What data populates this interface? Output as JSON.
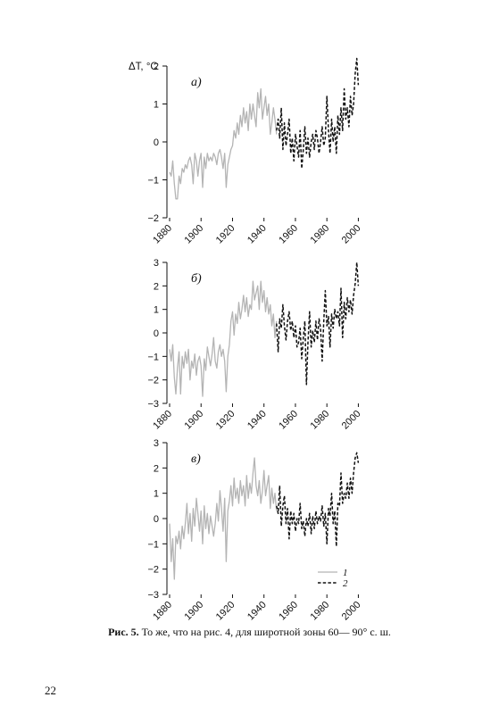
{
  "ylabel": "ΔT, °C",
  "caption": {
    "figure_number": "Рис. 5.",
    "text": "То же, что на рис. 4, для широтной зоны 60— 90° с. ш."
  },
  "page_number": "22",
  "legend": {
    "series1": "1",
    "series2": "2"
  },
  "chart_data": [
    {
      "type": "line",
      "panel_label": "а)",
      "xlim": [
        1880,
        2006
      ],
      "ylim": [
        -2,
        2
      ],
      "xticks": [
        "1880",
        "1900",
        "1920",
        "1940",
        "1960",
        "1980",
        "2000"
      ],
      "yticks": [
        "−2",
        "−1",
        "0",
        "1",
        "2"
      ],
      "series": [
        {
          "name": "1",
          "x_start": 1880,
          "values": [
            -0.8,
            -0.9,
            -0.5,
            -1.1,
            -1.5,
            -1.5,
            -0.9,
            -1.1,
            -0.7,
            -0.8,
            -0.6,
            -0.7,
            -0.5,
            -0.4,
            -0.6,
            -1.1,
            -0.3,
            -0.5,
            -0.9,
            -0.5,
            -0.3,
            -1.2,
            -0.4,
            -0.7,
            -0.3,
            -0.5,
            -0.4,
            -0.5,
            -0.3,
            -0.4,
            -0.6,
            -0.3,
            -0.2,
            -0.4,
            -0.7,
            -0.3,
            -1.2,
            -0.6,
            -0.4,
            -0.2,
            -0.1,
            0.3,
            0.1,
            0.5,
            0.2,
            0.7,
            0.4,
            0.9,
            0.5,
            0.8,
            0.3,
            1.0,
            0.6,
            1.0,
            0.7,
            0.4,
            1.3,
            0.9,
            1.4,
            0.6,
            0.9,
            1.2,
            0.7,
            1.0,
            0.2,
            0.5,
            0.9,
            0.6,
            0.2
          ]
        },
        {
          "name": "2",
          "x_start": 1948,
          "values": [
            0.3,
            0.6,
            0.1,
            0.9,
            -0.2,
            0.5,
            -0.1,
            0.2,
            0.6,
            -0.3,
            0.1,
            -0.5,
            0.2,
            -0.1,
            -0.4,
            0.3,
            -0.7,
            -0.2,
            0.4,
            -0.3,
            0.1,
            -0.4,
            0.0,
            0.2,
            -0.2,
            0.3,
            0.1,
            -0.3,
            0.0,
            0.4,
            -0.1,
            0.1,
            1.2,
            0.3,
            -0.3,
            0.6,
            0.0,
            0.4,
            -0.3,
            0.7,
            0.2,
            0.9,
            0.3,
            1.4,
            0.6,
            0.9,
            0.4,
            1.2,
            0.7,
            1.0,
            1.8,
            2.2,
            1.5
          ]
        }
      ]
    },
    {
      "type": "line",
      "panel_label": "б)",
      "xlim": [
        1880,
        2006
      ],
      "ylim": [
        -3,
        3
      ],
      "xticks": [
        "1880",
        "1900",
        "1920",
        "1940",
        "1960",
        "1980",
        "2000"
      ],
      "yticks": [
        "−3",
        "−2",
        "−1",
        "0",
        "1",
        "2",
        "3"
      ],
      "series": [
        {
          "name": "1",
          "x_start": 1880,
          "values": [
            -0.7,
            -1.2,
            -0.5,
            -1.9,
            -2.6,
            -1.5,
            -0.8,
            -2.6,
            -1.0,
            -1.5,
            -0.8,
            -1.3,
            -0.7,
            -2.0,
            -1.2,
            -1.5,
            -0.9,
            -1.8,
            -1.2,
            -1.0,
            -1.4,
            -2.7,
            -1.1,
            -1.6,
            -0.6,
            -1.0,
            -1.4,
            -0.9,
            -0.2,
            -1.2,
            -1.5,
            -0.8,
            -0.5,
            -1.0,
            -0.7,
            -1.2,
            -2.5,
            -1.0,
            -0.5,
            0.5,
            0.9,
            -0.1,
            0.8,
            0.4,
            1.3,
            0.6,
            1.0,
            1.6,
            0.9,
            1.5,
            0.7,
            1.2,
            1.0,
            2.2,
            1.4,
            1.7,
            2.0,
            1.0,
            2.2,
            1.3,
            1.8,
            0.9,
            1.5,
            0.8,
            1.2,
            0.3,
            0.8,
            -0.2,
            0.5
          ]
        },
        {
          "name": "2",
          "x_start": 1948,
          "values": [
            0.4,
            -0.8,
            0.6,
            0.2,
            1.2,
            0.3,
            -0.3,
            0.5,
            0.9,
            0.1,
            0.5,
            -0.2,
            0.3,
            -0.6,
            -0.4,
            0.2,
            -1.1,
            -0.2,
            0.5,
            -2.2,
            -0.4,
            0.9,
            -0.6,
            0.1,
            -0.4,
            0.5,
            -0.3,
            0.6,
            0.2,
            -1.2,
            0.5,
            1.8,
            0.3,
            0.7,
            -0.6,
            0.8,
            0.2,
            1.0,
            0.6,
            0.9,
            0.3,
            1.9,
            -0.2,
            1.3,
            0.6,
            1.5,
            0.9,
            1.4,
            0.8,
            1.6,
            2.1,
            3.0,
            2.0
          ]
        }
      ]
    },
    {
      "type": "line",
      "panel_label": "в)",
      "xlim": [
        1880,
        2006
      ],
      "ylim": [
        -3,
        3
      ],
      "xticks": [
        "1880",
        "1900",
        "1920",
        "1940",
        "1960",
        "1980",
        "2000"
      ],
      "yticks": [
        "−3",
        "−2",
        "−1",
        "0",
        "1",
        "2",
        "3"
      ],
      "series": [
        {
          "name": "1",
          "x_start": 1880,
          "values": [
            -0.2,
            -1.7,
            -0.8,
            -2.4,
            -0.7,
            -1.0,
            -0.5,
            -1.2,
            -0.3,
            -0.8,
            -0.2,
            0.6,
            -0.6,
            0.2,
            -0.9,
            0.4,
            -0.3,
            0.8,
            0.2,
            -0.5,
            0.3,
            -1.0,
            0.5,
            -0.4,
            0.2,
            -0.6,
            0.1,
            -0.3,
            -0.7,
            -0.2,
            0.6,
            -0.1,
            1.1,
            0.4,
            -0.5,
            0.8,
            -1.7,
            0.3,
            0.7,
            1.3,
            0.5,
            1.6,
            0.8,
            1.2,
            0.6,
            1.5,
            0.9,
            1.3,
            0.5,
            1.7,
            0.8,
            1.4,
            1.0,
            1.8,
            2.4,
            1.3,
            0.9,
            1.5,
            0.6,
            1.1,
            1.9,
            0.9,
            1.3,
            1.7,
            0.4,
            1.2,
            0.6,
            1.0,
            0.3
          ]
        },
        {
          "name": "2",
          "x_start": 1948,
          "values": [
            0.5,
            0.2,
            1.3,
            -0.3,
            0.5,
            0.9,
            -0.2,
            0.4,
            -0.8,
            0.3,
            -0.2,
            0.2,
            -0.5,
            0.0,
            -0.2,
            0.6,
            -0.4,
            -0.1,
            -0.7,
            0.0,
            -0.3,
            0.2,
            -0.6,
            0.1,
            -0.4,
            0.3,
            -0.2,
            0.1,
            -0.1,
            0.5,
            -0.3,
            0.2,
            -1.0,
            0.4,
            0.1,
            1.0,
            -0.2,
            0.3,
            -1.1,
            0.6,
            0.5,
            1.8,
            0.6,
            1.0,
            0.8,
            1.4,
            0.8,
            1.6,
            1.0,
            1.8,
            2.4,
            2.6,
            2.2
          ]
        }
      ]
    }
  ]
}
